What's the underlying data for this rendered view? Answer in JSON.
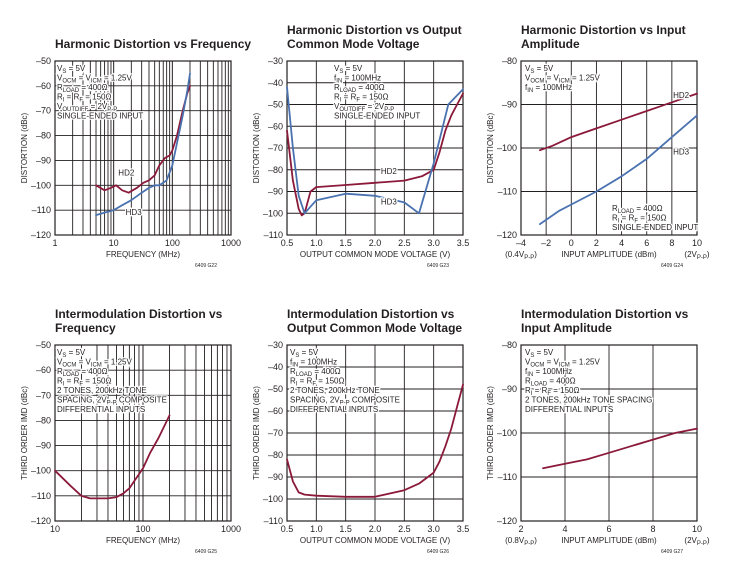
{
  "colors": {
    "series_red": "#8b1a3a",
    "series_blue": "#4a72b0",
    "grid": "#231f20",
    "text": "#231f20"
  },
  "chart_data": [
    {
      "type": "line",
      "title_lines": [
        "Harmonic Distortion vs Frequency"
      ],
      "xlabel": "FREQUENCY (MHz)",
      "ylabel": "DISTORTION (dBc)",
      "xscale": "log",
      "xlim": [
        1,
        1000
      ],
      "ylim": [
        -120,
        -50
      ],
      "x_ticks": [
        1,
        10,
        100,
        1000
      ],
      "x_tick_labels": [
        "1",
        "10",
        "100",
        "1000"
      ],
      "y_ticks": [
        -120,
        -110,
        -100,
        -90,
        -80,
        -70,
        -60,
        -50
      ],
      "y_tick_labels": [
        "–120",
        "–110",
        "–100",
        "–90",
        "–80",
        "–70",
        "–60",
        "–50"
      ],
      "x_extra_labels": [],
      "annotations": [
        {
          "text": "V",
          "sub": "S",
          "rest": " = 5V"
        },
        {
          "text": "V",
          "sub": "OCM",
          "rest": " = V",
          "sub2": "ICM",
          "rest2": " = 1.25V"
        },
        {
          "text": "R",
          "sub": "LOAD",
          "rest": " = 400Ω"
        },
        {
          "text": "R",
          "sub": "I",
          "rest": " = R",
          "sub2": "F",
          "rest2": " = 150Ω"
        },
        {
          "text": "V",
          "sub": "OUTDIFF",
          "rest": " = 2V",
          "sub2": "P-P",
          "rest2": ""
        },
        {
          "text": "SINGLE-ENDED INPUT",
          "sub": "",
          "rest": ""
        }
      ],
      "series": [
        {
          "name": "HD2",
          "color": "red",
          "x": [
            5,
            7,
            9,
            11,
            14,
            18,
            25,
            32,
            40,
            50,
            60,
            75,
            90,
            100,
            120,
            150,
            180,
            200
          ],
          "y": [
            -100,
            -102,
            -101,
            -100,
            -102,
            -103,
            -101,
            -99,
            -98,
            -96,
            -92,
            -89,
            -88,
            -86,
            -80,
            -70,
            -63,
            -60
          ]
        },
        {
          "name": "HD3",
          "color": "blue",
          "x": [
            5,
            7,
            10,
            14,
            20,
            30,
            40,
            50,
            60,
            70,
            80,
            100,
            120,
            150,
            180,
            200
          ],
          "y": [
            -112,
            -111,
            -110,
            -108,
            -106,
            -103,
            -101,
            -100,
            -100,
            -99,
            -98,
            -92,
            -83,
            -72,
            -62,
            -55
          ]
        }
      ],
      "series_labels": [
        {
          "text": "HD2",
          "x": 12,
          "y": -96
        },
        {
          "text": "HD3",
          "x": 16,
          "y": -112
        }
      ],
      "footer": "6409 G22"
    },
    {
      "type": "line",
      "title_lines": [
        "Harmonic Distortion vs Output",
        "Common Mode Voltage"
      ],
      "xlabel": "OUTPUT COMMON MODE VOLTAGE (V)",
      "ylabel": "DISTORTION (dBc)",
      "xscale": "linear",
      "xlim": [
        0.5,
        3.5
      ],
      "ylim": [
        -110,
        -30
      ],
      "x_ticks": [
        0.5,
        1,
        1.5,
        2,
        2.5,
        3,
        3.5
      ],
      "x_tick_labels": [
        "0.5",
        "1.0",
        "1.5",
        "2.0",
        "2.5",
        "3.0",
        "3.5"
      ],
      "y_ticks": [
        -110,
        -100,
        -90,
        -80,
        -70,
        -60,
        -50,
        -40,
        -30
      ],
      "y_tick_labels": [
        "–110",
        "–100",
        "–90",
        "–80",
        "–70",
        "–60",
        "–50",
        "–40",
        "–30"
      ],
      "x_extra_labels": [],
      "annotations": [
        {
          "text": "V",
          "sub": "S",
          "rest": " = 5V"
        },
        {
          "text": "f",
          "sub": "IN",
          "rest": " = 100MHz"
        },
        {
          "text": "R",
          "sub": "LOAD",
          "rest": " = 400Ω"
        },
        {
          "text": "R",
          "sub": "I",
          "rest": " = R",
          "sub2": "F",
          "rest2": " = 150Ω"
        },
        {
          "text": "V",
          "sub": "OUTDIFF",
          "rest": " = 2V",
          "sub2": "P-P",
          "rest2": ""
        },
        {
          "text": "SINGLE-ENDED INPUT",
          "sub": "",
          "rest": ""
        }
      ],
      "series": [
        {
          "name": "HD2",
          "color": "red",
          "x": [
            0.5,
            0.6,
            0.7,
            0.75,
            0.8,
            0.9,
            1.0,
            1.5,
            2.0,
            2.5,
            2.8,
            3.0,
            3.1,
            3.2,
            3.3,
            3.4,
            3.5
          ],
          "y": [
            -62,
            -85,
            -98,
            -101,
            -100,
            -90,
            -88,
            -87,
            -86,
            -85,
            -83,
            -80,
            -72,
            -62,
            -55,
            -50,
            -45
          ]
        },
        {
          "name": "HD3",
          "color": "blue",
          "x": [
            0.5,
            0.6,
            0.7,
            0.8,
            0.9,
            1.0,
            1.5,
            2.0,
            2.5,
            2.75,
            3.0,
            3.25,
            3.5
          ],
          "y": [
            -42,
            -70,
            -92,
            -100,
            -97,
            -94,
            -91,
            -92,
            -95,
            -100,
            -77,
            -50,
            -43
          ]
        }
      ],
      "series_labels": [
        {
          "text": "HD2",
          "x": 2.1,
          "y": -82
        },
        {
          "text": "HD3",
          "x": 2.1,
          "y": -96
        }
      ],
      "footer": "6409 G23"
    },
    {
      "type": "line",
      "title_lines": [
        "Harmonic Distortion vs Input",
        "Amplitude"
      ],
      "xlabel": "INPUT AMPLITUDE (dBm)",
      "ylabel": "DISTORTION (dBc)",
      "xscale": "linear",
      "xlim": [
        -4,
        10
      ],
      "ylim": [
        -120,
        -80
      ],
      "x_ticks": [
        -4,
        -2,
        0,
        2,
        4,
        6,
        8,
        10
      ],
      "x_tick_labels": [
        "–4",
        "–2",
        "0",
        "2",
        "4",
        "6",
        "8",
        "10"
      ],
      "y_ticks": [
        -120,
        -110,
        -100,
        -90,
        -80
      ],
      "y_tick_labels": [
        "–120",
        "–110",
        "–100",
        "–90",
        "–80"
      ],
      "x_extra_labels": [
        {
          "x": -4,
          "text": "(0.4V",
          "sub": "P-P",
          "rest": ")"
        },
        {
          "x": 10,
          "text": "(2V",
          "sub": "P-P",
          "rest": ")"
        }
      ],
      "annotations": [
        {
          "text": "V",
          "sub": "S",
          "rest": " = 5V"
        },
        {
          "text": "V",
          "sub": "OCM",
          "rest": " = V",
          "sub2": "ICM",
          "rest2": " = 1.25V"
        },
        {
          "text": "f",
          "sub": "IN",
          "rest": " = 100MHz"
        }
      ],
      "annotations_low": [
        {
          "text": "R",
          "sub": "LOAD",
          "rest": " = 400Ω"
        },
        {
          "text": "R",
          "sub": "I",
          "rest": " = R",
          "sub2": "F",
          "rest2": " = 150Ω"
        },
        {
          "text": "SINGLE-ENDED INPUT",
          "sub": "",
          "rest": ""
        }
      ],
      "series": [
        {
          "name": "HD2",
          "color": "red",
          "x": [
            -2.5,
            -1.5,
            0,
            2,
            4,
            6,
            7,
            8,
            9,
            10
          ],
          "y": [
            -100.5,
            -99.5,
            -97.5,
            -95.5,
            -93.5,
            -91.5,
            -90.5,
            -89.5,
            -88.5,
            -87.5
          ]
        },
        {
          "name": "HD3",
          "color": "blue",
          "x": [
            -2.5,
            -1,
            0,
            2,
            4,
            6,
            8,
            10
          ],
          "y": [
            -117.5,
            -114.5,
            -113,
            -110,
            -106.5,
            -102.5,
            -97.5,
            -92.5
          ]
        }
      ],
      "series_labels": [
        {
          "text": "HD2",
          "x": 8.1,
          "y": -88.5
        },
        {
          "text": "HD3",
          "x": 8.1,
          "y": -101.5
        }
      ],
      "footer": "6409 G24"
    },
    {
      "type": "line",
      "title_lines": [
        "Intermodulation Distortion vs",
        "Frequency"
      ],
      "xlabel": "FREQUENCY (MHz)",
      "ylabel": "THIRD ORDER IMD (dBc)",
      "xscale": "log",
      "xlim": [
        10,
        1000
      ],
      "ylim": [
        -120,
        -50
      ],
      "x_ticks": [
        10,
        100,
        1000
      ],
      "x_tick_labels": [
        "10",
        "100",
        "1000"
      ],
      "y_ticks": [
        -120,
        -110,
        -100,
        -90,
        -80,
        -70,
        -60,
        -50
      ],
      "y_tick_labels": [
        "–120",
        "–110",
        "–100",
        "–90",
        "–80",
        "–70",
        "–60",
        "–50"
      ],
      "x_extra_labels": [],
      "annotations": [
        {
          "text": "V",
          "sub": "S",
          "rest": " = 5V"
        },
        {
          "text": "V",
          "sub": "OCM",
          "rest": " = V",
          "sub2": "ICM",
          "rest2": " = 1.25V"
        },
        {
          "text": "R",
          "sub": "LOAD",
          "rest": " = 400Ω"
        },
        {
          "text": "R",
          "sub": "I",
          "rest": " = R",
          "sub2": "F",
          "rest2": " = 150Ω"
        },
        {
          "text": "2 TONES, 200kHz TONE",
          "sub": "",
          "rest": ""
        },
        {
          "text": "SPACING, 2V",
          "sub": "P-P",
          "rest": " COMPOSITE"
        },
        {
          "text": "DIFFERENTIAL INPUTS",
          "sub": "",
          "rest": ""
        }
      ],
      "series": [
        {
          "name": "IMD3",
          "color": "red",
          "x": [
            10,
            15,
            20,
            25,
            30,
            40,
            50,
            60,
            70,
            80,
            100,
            120,
            150,
            200
          ],
          "y": [
            -100,
            -106,
            -110,
            -111,
            -111,
            -111,
            -110.5,
            -109,
            -107,
            -104,
            -99,
            -93,
            -87,
            -78
          ]
        }
      ],
      "series_labels": [],
      "footer": "6409 G25"
    },
    {
      "type": "line",
      "title_lines": [
        "Intermodulation Distortion vs",
        "Output Common Mode Voltage"
      ],
      "xlabel": "OUTPUT COMMON MODE VOLTAGE (V)",
      "ylabel": "THIRD ORDER IMD (dBc)",
      "xscale": "linear",
      "xlim": [
        0.5,
        3.5
      ],
      "ylim": [
        -110,
        -30
      ],
      "x_ticks": [
        0.5,
        1,
        1.5,
        2,
        2.5,
        3,
        3.5
      ],
      "x_tick_labels": [
        "0.5",
        "1.0",
        "1.5",
        "2.0",
        "2.5",
        "3.0",
        "3.5"
      ],
      "y_ticks": [
        -110,
        -100,
        -90,
        -80,
        -70,
        -60,
        -50,
        -40,
        -30
      ],
      "y_tick_labels": [
        "–110",
        "–100",
        "–90",
        "–80",
        "–70",
        "–60",
        "–50",
        "–40",
        "–30"
      ],
      "x_extra_labels": [],
      "annotations": [
        {
          "text": "V",
          "sub": "S",
          "rest": " = 5V"
        },
        {
          "text": "f",
          "sub": "IN",
          "rest": " = 100MHz"
        },
        {
          "text": "R",
          "sub": "LOAD",
          "rest": " = 400Ω"
        },
        {
          "text": "R",
          "sub": "I",
          "rest": " = R",
          "sub2": "F",
          "rest2": " = 150Ω"
        },
        {
          "text": "2 TONES, 200kHz TONE",
          "sub": "",
          "rest": ""
        },
        {
          "text": "SPACING, 2V",
          "sub": "P-P",
          "rest": " COMPOSITE"
        },
        {
          "text": "DIFFERENTIAL INPUTS",
          "sub": "",
          "rest": ""
        }
      ],
      "series": [
        {
          "name": "IMD3",
          "color": "red",
          "x": [
            0.5,
            0.6,
            0.7,
            0.8,
            1.0,
            1.5,
            2.0,
            2.5,
            2.75,
            3.0,
            3.1,
            3.2,
            3.3,
            3.4,
            3.5
          ],
          "y": [
            -82,
            -92,
            -97,
            -98,
            -98.5,
            -99,
            -99,
            -96,
            -93,
            -88,
            -83,
            -76,
            -68,
            -58,
            -48
          ]
        }
      ],
      "series_labels": [],
      "footer": "6409 G26"
    },
    {
      "type": "line",
      "title_lines": [
        "Intermodulation Distortion vs",
        "Input Amplitude"
      ],
      "xlabel": "INPUT AMPLITUDE (dBm)",
      "ylabel": "THIRD ORDER IMD (dBc)",
      "xscale": "linear",
      "xlim": [
        2,
        10
      ],
      "ylim": [
        -120,
        -80
      ],
      "x_ticks": [
        2,
        4,
        6,
        8,
        10
      ],
      "x_tick_labels": [
        "2",
        "4",
        "6",
        "8",
        "10"
      ],
      "y_ticks": [
        -120,
        -110,
        -100,
        -90,
        -80
      ],
      "y_tick_labels": [
        "–120",
        "–110",
        "–100",
        "–90",
        "–80"
      ],
      "x_extra_labels": [
        {
          "x": 2,
          "text": "(0.8V",
          "sub": "P-P",
          "rest": ")"
        },
        {
          "x": 10,
          "text": "(2V",
          "sub": "P-P",
          "rest": ")"
        }
      ],
      "annotations": [
        {
          "text": "V",
          "sub": "S",
          "rest": " = 5V"
        },
        {
          "text": "V",
          "sub": "OCM",
          "rest": " = V",
          "sub2": "ICM",
          "rest2": " = 1.25V"
        },
        {
          "text": "f",
          "sub": "IN",
          "rest": " = 100MHz"
        },
        {
          "text": "R",
          "sub": "LOAD",
          "rest": " = 400Ω"
        },
        {
          "text": "R",
          "sub": "I",
          "rest": " = R",
          "sub2": "F",
          "rest2": " = 150Ω"
        },
        {
          "text": "2 TONES, 200kHz TONE SPACING",
          "sub": "",
          "rest": ""
        },
        {
          "text": "DIFFERENTIAL INPUTS",
          "sub": "",
          "rest": ""
        }
      ],
      "series": [
        {
          "name": "IMD3",
          "color": "red",
          "x": [
            3,
            4,
            5,
            6,
            7,
            8,
            9,
            10
          ],
          "y": [
            -108,
            -107,
            -106,
            -104.5,
            -103,
            -101.5,
            -100,
            -99
          ]
        }
      ],
      "series_labels": [],
      "footer": "6409 G27"
    }
  ]
}
